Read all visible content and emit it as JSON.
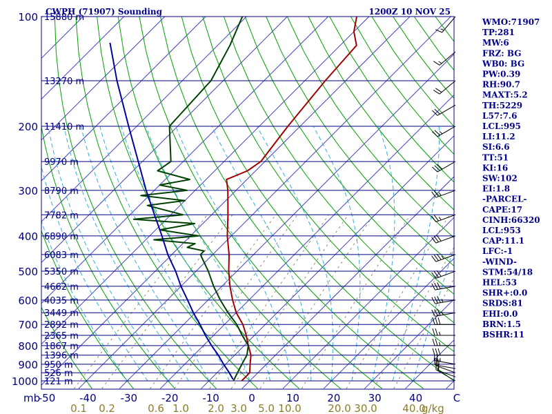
{
  "header": {
    "title": "CWPH (71907) Sounding",
    "time": "1200Z 10 NOV 25"
  },
  "colors": {
    "isobar": "#000080",
    "isotherm": "#4040c0",
    "dry_adiabat": "#00a000",
    "moist_adiabat": "#30b0e0",
    "mixing_ratio": "#8b8b70",
    "temperature": "#a00000",
    "dewpoint": "#004000",
    "parcel": "#0000a0",
    "wind": "#000000"
  },
  "axes": {
    "pressure_unit_label": "mb",
    "mixing_ratio_unit_label": "g/kg",
    "pressure_ticks": [
      "100",
      "200",
      "300",
      "400",
      "500",
      "600",
      "700",
      "800",
      "900",
      "1000"
    ],
    "temperature_ticks": [
      "-50",
      "-40",
      "-30",
      "-20",
      "-10",
      "0",
      "10",
      "20",
      "30",
      "40",
      "C"
    ],
    "mixing_ratio_ticks": [
      "0.1",
      "0.2",
      "0.6",
      "1.0",
      "2.0",
      "3.0",
      "5.0",
      "10.0",
      "20.0",
      "30.0",
      "40.0"
    ]
  },
  "height_levels": [
    {
      "p": 100,
      "label": "15880 m"
    },
    {
      "p": 150,
      "label": "13270 m"
    },
    {
      "p": 200,
      "label": "11410 m"
    },
    {
      "p": 250,
      "label": "9970 m"
    },
    {
      "p": 300,
      "label": "8790 m"
    },
    {
      "p": 350,
      "label": "7782 m"
    },
    {
      "p": 400,
      "label": "6890 m"
    },
    {
      "p": 450,
      "label": "6083 m"
    },
    {
      "p": 500,
      "label": "5350 m"
    },
    {
      "p": 550,
      "label": "4662 m"
    },
    {
      "p": 600,
      "label": "4035 m"
    },
    {
      "p": 650,
      "label": "3449 m"
    },
    {
      "p": 700,
      "label": "2892 m"
    },
    {
      "p": 750,
      "label": "2365 m"
    },
    {
      "p": 800,
      "label": "1867 m"
    },
    {
      "p": 850,
      "label": "1396 m"
    },
    {
      "p": 900,
      "label": "950 m"
    },
    {
      "p": 950,
      "label": "526 m"
    },
    {
      "p": 1000,
      "label": "121 m"
    }
  ],
  "indices": [
    "WMO:71907",
    "TP:281",
    "MW:6",
    "FRZ: BG",
    "WB0: BG",
    "PW:0.39",
    "RH:90.7",
    "MAXT:5.2",
    "TH:5229",
    "L57:7.6",
    "LCL:995",
    "LI:11.2",
    "SI:6.6",
    "TT:51",
    "KI:16",
    "SW:102",
    "EI:1.8",
    "-PARCEL-",
    "CAPE:17",
    "CINH:66320",
    "LCL:953",
    "CAP:11.1",
    "LFC:-1",
    "-WIND-",
    "STM:54/18",
    "HEL:53",
    "SHR+:0.0",
    "SRDS:81",
    "EHI:0.0",
    "BRN:1.5",
    "BSHR:11"
  ],
  "chart_data": {
    "type": "line",
    "title": "CWPH (71907) Sounding",
    "subtitle": "1200Z 10 NOV 25",
    "xlabel": "C",
    "ylabel": "mb",
    "xlim": [
      -50,
      50
    ],
    "ylim": [
      1050,
      100
    ],
    "y_scale": "log",
    "skew": "T-logP (Skew-T)",
    "series": [
      {
        "name": "Temperature",
        "points": [
          {
            "p": 1000,
            "t": -2
          },
          {
            "p": 950,
            "t": -2
          },
          {
            "p": 900,
            "t": -4
          },
          {
            "p": 850,
            "t": -6
          },
          {
            "p": 800,
            "t": -9
          },
          {
            "p": 750,
            "t": -12
          },
          {
            "p": 700,
            "t": -15.5
          },
          {
            "p": 650,
            "t": -20
          },
          {
            "p": 600,
            "t": -24
          },
          {
            "p": 550,
            "t": -28
          },
          {
            "p": 500,
            "t": -32
          },
          {
            "p": 450,
            "t": -36
          },
          {
            "p": 400,
            "t": -41
          },
          {
            "p": 350,
            "t": -46
          },
          {
            "p": 300,
            "t": -52
          },
          {
            "p": 280,
            "t": -55
          },
          {
            "p": 265,
            "t": -52
          },
          {
            "p": 250,
            "t": -51
          },
          {
            "p": 200,
            "t": -53
          },
          {
            "p": 150,
            "t": -55
          },
          {
            "p": 120,
            "t": -56
          },
          {
            "p": 110,
            "t": -60
          },
          {
            "p": 100,
            "t": -63
          }
        ]
      },
      {
        "name": "Dewpoint",
        "points": [
          {
            "p": 1000,
            "t": -4
          },
          {
            "p": 950,
            "t": -5
          },
          {
            "p": 900,
            "t": -6
          },
          {
            "p": 850,
            "t": -7
          },
          {
            "p": 800,
            "t": -9
          },
          {
            "p": 750,
            "t": -13
          },
          {
            "p": 700,
            "t": -17
          },
          {
            "p": 650,
            "t": -22
          },
          {
            "p": 600,
            "t": -27
          },
          {
            "p": 550,
            "t": -32
          },
          {
            "p": 500,
            "t": -37
          },
          {
            "p": 450,
            "t": -43
          },
          {
            "p": 440,
            "t": -43
          },
          {
            "p": 430,
            "t": -48
          },
          {
            "p": 420,
            "t": -47
          },
          {
            "p": 410,
            "t": -58
          },
          {
            "p": 400,
            "t": -48
          },
          {
            "p": 385,
            "t": -59
          },
          {
            "p": 370,
            "t": -52
          },
          {
            "p": 360,
            "t": -68
          },
          {
            "p": 350,
            "t": -57
          },
          {
            "p": 330,
            "t": -68
          },
          {
            "p": 320,
            "t": -60
          },
          {
            "p": 310,
            "t": -72
          },
          {
            "p": 300,
            "t": -62
          },
          {
            "p": 290,
            "t": -70
          },
          {
            "p": 280,
            "t": -64
          },
          {
            "p": 265,
            "t": -74
          },
          {
            "p": 250,
            "t": -73
          },
          {
            "p": 200,
            "t": -82
          },
          {
            "p": 150,
            "t": -83
          },
          {
            "p": 120,
            "t": -87
          },
          {
            "p": 100,
            "t": -91
          }
        ]
      },
      {
        "name": "Parcel",
        "points": [
          {
            "p": 990,
            "t": -4.5
          },
          {
            "p": 950,
            "t": -7
          },
          {
            "p": 900,
            "t": -10.5
          },
          {
            "p": 850,
            "t": -14
          },
          {
            "p": 800,
            "t": -18
          },
          {
            "p": 750,
            "t": -22
          },
          {
            "p": 700,
            "t": -26
          },
          {
            "p": 650,
            "t": -30.5
          },
          {
            "p": 600,
            "t": -35
          },
          {
            "p": 550,
            "t": -40
          },
          {
            "p": 500,
            "t": -45
          },
          {
            "p": 450,
            "t": -51
          },
          {
            "p": 400,
            "t": -57
          },
          {
            "p": 350,
            "t": -64
          },
          {
            "p": 300,
            "t": -72
          },
          {
            "p": 250,
            "t": -81
          },
          {
            "p": 200,
            "t": -92
          },
          {
            "p": 150,
            "t": -106
          },
          {
            "p": 118,
            "t": -117
          }
        ]
      }
    ],
    "wind_barbs": [
      {
        "p": 1000,
        "dir": 300,
        "spd": 10
      },
      {
        "p": 975,
        "dir": 290,
        "spd": 15
      },
      {
        "p": 950,
        "dir": 290,
        "spd": 20
      },
      {
        "p": 925,
        "dir": 280,
        "spd": 20
      },
      {
        "p": 900,
        "dir": 280,
        "spd": 25
      },
      {
        "p": 850,
        "dir": 270,
        "spd": 30
      },
      {
        "p": 800,
        "dir": 270,
        "spd": 25
      },
      {
        "p": 750,
        "dir": 270,
        "spd": 25
      },
      {
        "p": 700,
        "dir": 270,
        "spd": 30
      },
      {
        "p": 650,
        "dir": 260,
        "spd": 35
      },
      {
        "p": 600,
        "dir": 260,
        "spd": 35
      },
      {
        "p": 550,
        "dir": 260,
        "spd": 30
      },
      {
        "p": 500,
        "dir": 250,
        "spd": 30
      },
      {
        "p": 450,
        "dir": 250,
        "spd": 35
      },
      {
        "p": 400,
        "dir": 250,
        "spd": 30
      },
      {
        "p": 350,
        "dir": 250,
        "spd": 25
      },
      {
        "p": 300,
        "dir": 250,
        "spd": 25
      },
      {
        "p": 250,
        "dir": 240,
        "spd": 30
      },
      {
        "p": 200,
        "dir": 240,
        "spd": 25
      },
      {
        "p": 175,
        "dir": 240,
        "spd": 20
      },
      {
        "p": 150,
        "dir": 230,
        "spd": 20
      },
      {
        "p": 125,
        "dir": 230,
        "spd": 15
      },
      {
        "p": 100,
        "dir": 220,
        "spd": 15
      }
    ]
  }
}
